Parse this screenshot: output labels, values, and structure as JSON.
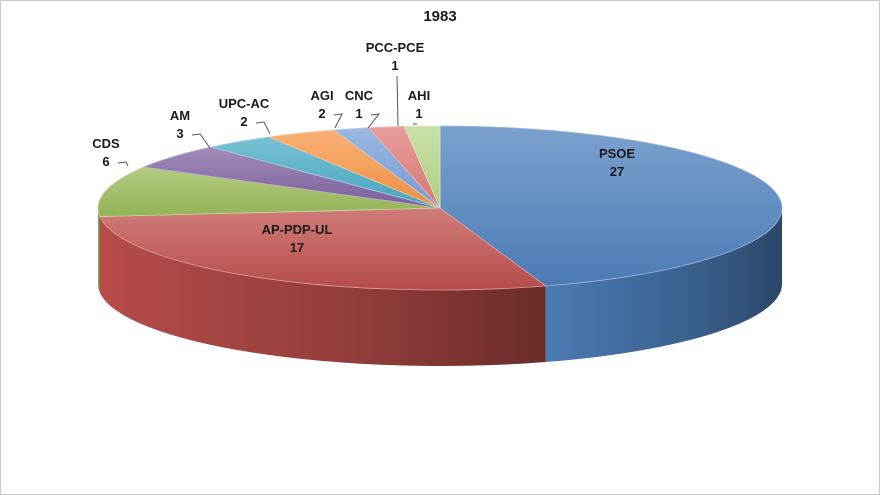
{
  "chart_data": {
    "type": "pie",
    "title": "1983",
    "three_d": true,
    "slices": [
      {
        "label": "PSOE",
        "value": 27,
        "color": "#4f81bd"
      },
      {
        "label": "AP-PDP-UL",
        "value": 17,
        "color": "#c0504d"
      },
      {
        "label": "CDS",
        "value": 6,
        "color": "#9bbb59"
      },
      {
        "label": "AM",
        "value": 3,
        "color": "#8064a2"
      },
      {
        "label": "UPC-AC",
        "value": 2,
        "color": "#4bacc6"
      },
      {
        "label": "AGI",
        "value": 2,
        "color": "#f79646"
      },
      {
        "label": "CNC",
        "value": 1,
        "color": "#7aa0d8"
      },
      {
        "label": "PCC-PCE",
        "value": 1,
        "color": "#e07c79"
      },
      {
        "label": "AHI",
        "value": 1,
        "color": "#b7d78a"
      }
    ]
  }
}
